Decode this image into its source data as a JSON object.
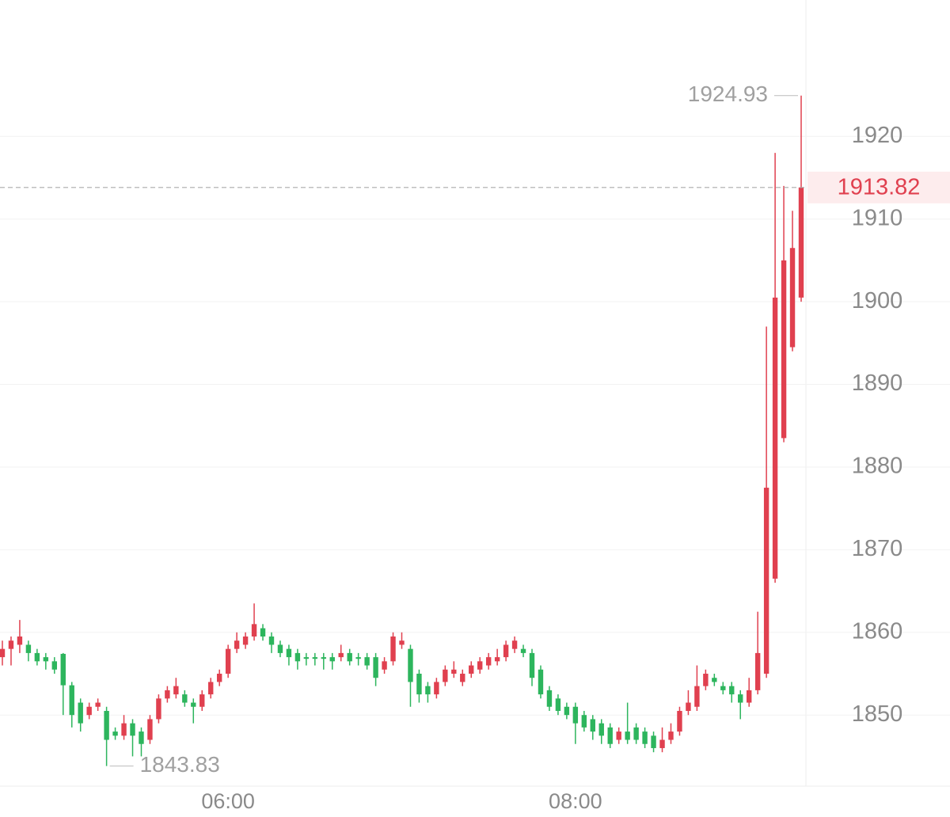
{
  "chart_data": {
    "type": "candlestick",
    "categories": [
      null,
      null,
      null,
      null,
      null,
      null,
      null,
      null,
      null,
      null,
      null,
      null,
      null,
      null,
      null,
      null,
      null,
      null,
      null,
      null,
      null,
      null,
      null,
      null,
      null,
      null,
      "06:00",
      null,
      null,
      null,
      null,
      null,
      null,
      null,
      null,
      null,
      null,
      null,
      null,
      null,
      null,
      null,
      null,
      null,
      null,
      null,
      null,
      null,
      null,
      null,
      null,
      null,
      null,
      null,
      null,
      null,
      null,
      null,
      null,
      null,
      null,
      null,
      null,
      null,
      null,
      null,
      "08:00",
      null,
      null,
      null,
      null,
      null,
      null,
      null,
      null,
      null,
      null,
      null,
      null,
      null,
      null,
      null,
      null,
      null,
      null,
      null,
      null,
      null,
      null,
      null,
      null,
      null,
      null
    ],
    "open": [
      1857,
      1858,
      1858.5,
      1858.5,
      1857.5,
      1857,
      1856.5,
      1857.4,
      1853.6,
      1851.5,
      1850,
      1851,
      1850.5,
      1848,
      1847.5,
      1849,
      1848,
      1847,
      1849.5,
      1852,
      1852.5,
      1852.5,
      1851.5,
      1851,
      1852.5,
      1854,
      1855,
      1858,
      1858.5,
      1859.5,
      1860.5,
      1859.5,
      1858.5,
      1858,
      1857.5,
      1857,
      1857,
      1857,
      1857,
      1857,
      1857.5,
      1857,
      1857,
      1857,
      1855.5,
      1856.5,
      1858.5,
      1858,
      1855,
      1853.5,
      1852.5,
      1854,
      1855,
      1854,
      1855,
      1855.5,
      1856,
      1856.5,
      1857,
      1858,
      1858,
      1857.5,
      1855.5,
      1853,
      1852,
      1851,
      1851,
      1850,
      1849.5,
      1849,
      1848.5,
      1847,
      1848,
      1848.5,
      1848,
      1847.5,
      1846,
      1847,
      1848,
      1850.5,
      1851,
      1853.5,
      1854.5,
      1853.5,
      1853.5,
      1852.5,
      1851.5,
      1853,
      1855,
      1866.5,
      1883.5,
      1894.5,
      1900.5
    ],
    "high": [
      1859,
      1859.5,
      1861.5,
      1859,
      1858,
      1857.5,
      1857,
      1857.5,
      1854,
      1852,
      1851.5,
      1852,
      1851,
      1848.5,
      1850,
      1849.5,
      1848.5,
      1850,
      1852.5,
      1853.5,
      1854.5,
      1853,
      1852,
      1853,
      1854.5,
      1855.5,
      1858.5,
      1860,
      1860,
      1863.5,
      1861,
      1860,
      1859,
      1858.5,
      1858,
      1857.5,
      1857.5,
      1857.5,
      1857.5,
      1858.5,
      1858,
      1857.5,
      1857.5,
      1857.5,
      1857,
      1860,
      1860,
      1858.5,
      1855.5,
      1854,
      1854.5,
      1856,
      1856.5,
      1855.5,
      1856.5,
      1857,
      1857.5,
      1858,
      1859,
      1859.5,
      1858.5,
      1858,
      1856,
      1853.5,
      1852.5,
      1851.5,
      1851.5,
      1850.5,
      1850,
      1849.5,
      1849,
      1848.5,
      1851.5,
      1849,
      1848.5,
      1848,
      1848.5,
      1849,
      1851,
      1853,
      1856,
      1855.5,
      1855,
      1854,
      1854,
      1853,
      1854.5,
      1862.5,
      1897,
      1918,
      1914,
      1911,
      1924.93
    ],
    "low": [
      1856,
      1856,
      1857.5,
      1856.5,
      1856,
      1855.5,
      1855,
      1850,
      1848.5,
      1848,
      1849.5,
      1850.5,
      1843.83,
      1847,
      1847,
      1845,
      1845,
      1846.5,
      1849,
      1851.5,
      1852,
      1851,
      1849,
      1850.5,
      1852,
      1853.5,
      1854.5,
      1857.5,
      1858,
      1859,
      1859,
      1857.5,
      1857,
      1856,
      1855.5,
      1856,
      1856,
      1855.5,
      1855.5,
      1856.5,
      1856,
      1856,
      1855.5,
      1853.5,
      1855,
      1856,
      1858,
      1851,
      1851.5,
      1851.5,
      1852,
      1853.5,
      1854.5,
      1853.5,
      1854.5,
      1855,
      1855.5,
      1856,
      1856.5,
      1857.5,
      1857,
      1853.5,
      1852,
      1850.5,
      1850,
      1849.5,
      1846.5,
      1848,
      1847,
      1846.5,
      1846,
      1846.5,
      1846.5,
      1846.5,
      1846,
      1845.5,
      1845.5,
      1846.5,
      1847.5,
      1850,
      1850.5,
      1853,
      1853.5,
      1852.5,
      1851.5,
      1849.5,
      1851,
      1852.5,
      1854.5,
      1866,
      1883,
      1894,
      1900
    ],
    "close": [
      1858,
      1859,
      1859.5,
      1857.5,
      1856.5,
      1856.5,
      1855.5,
      1853.6,
      1850,
      1849,
      1851,
      1851.5,
      1847,
      1847.5,
      1849,
      1847.5,
      1846.5,
      1849.5,
      1852,
      1853,
      1853.5,
      1851.5,
      1851,
      1852.5,
      1854,
      1855,
      1858,
      1859,
      1859.5,
      1861,
      1859.5,
      1858.5,
      1857.5,
      1857,
      1856.5,
      1856.8,
      1856.8,
      1856.8,
      1856.5,
      1857.5,
      1856.5,
      1856.8,
      1856,
      1854.5,
      1856.5,
      1859.5,
      1859,
      1854,
      1852.5,
      1852.5,
      1854,
      1855.5,
      1855.5,
      1855,
      1856,
      1856.5,
      1857,
      1857,
      1858.5,
      1859,
      1857.5,
      1854.5,
      1852.5,
      1851,
      1850.5,
      1850,
      1849,
      1848.5,
      1848,
      1847.5,
      1846.5,
      1848,
      1847,
      1847,
      1846.5,
      1846,
      1847,
      1848,
      1850.5,
      1851.5,
      1853.5,
      1855,
      1854,
      1853,
      1852.5,
      1851.5,
      1853,
      1857.5,
      1877.5,
      1900.5,
      1905,
      1906.5,
      1913.82
    ],
    "up_color": "#e0404f",
    "down_color": "#2db55d",
    "ylim": [
      1841.4,
      1936.5
    ],
    "yticks": [
      1850,
      1860,
      1870,
      1880,
      1890,
      1900,
      1910,
      1920
    ],
    "grid": true
  }
}
